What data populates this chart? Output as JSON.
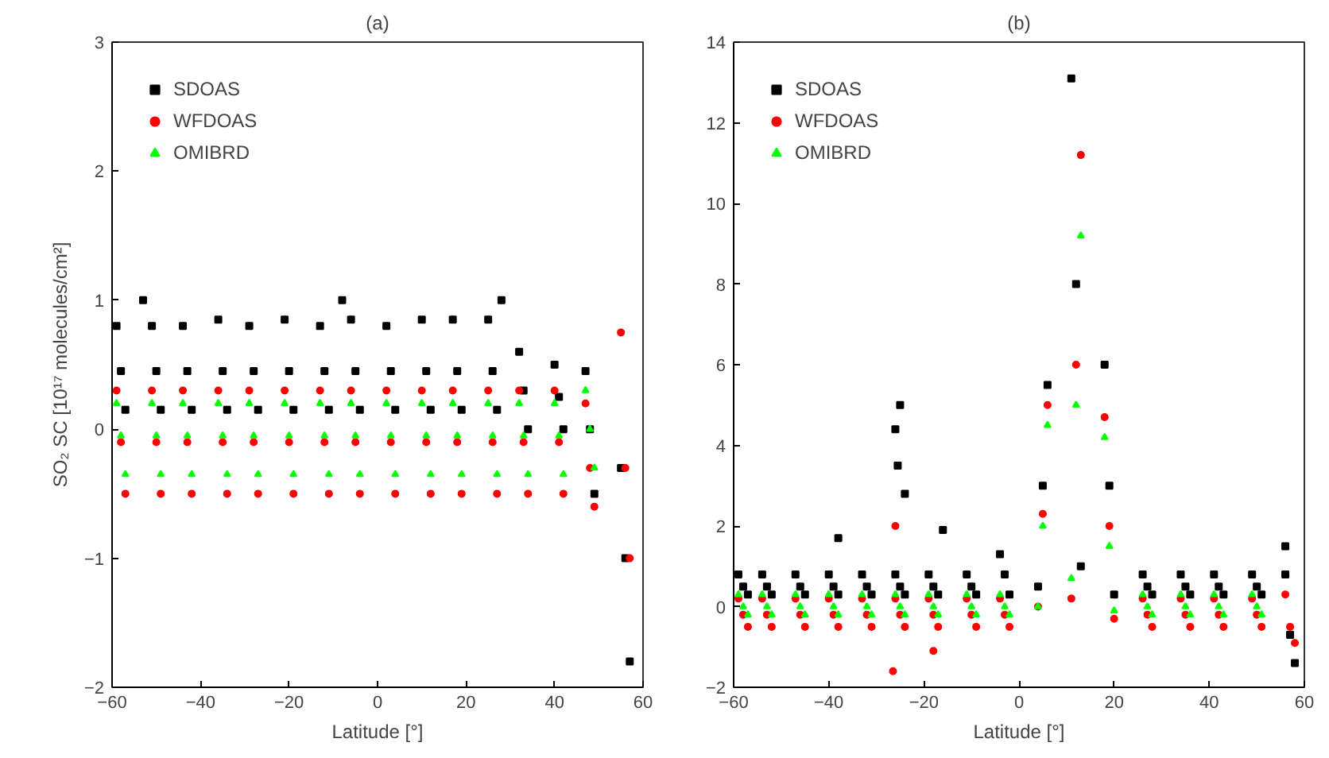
{
  "chart_data": [
    {
      "type": "scatter",
      "title": "(a)",
      "xlabel": "Latitude [°]",
      "ylabel": "SO₂ SC [10¹⁷ molecules/cm²]",
      "xlim": [
        -60,
        60
      ],
      "ylim": [
        -2,
        3
      ],
      "xticks": [
        -60,
        -40,
        -20,
        0,
        20,
        40,
        60
      ],
      "yticks": [
        -2,
        -1,
        0,
        1,
        2,
        3
      ],
      "legend": "top left",
      "series": [
        {
          "name": "SDOAS",
          "color": "#000000",
          "marker": "square",
          "x": [
            -59,
            -58,
            -57,
            -51,
            -50,
            -49,
            -44,
            -43,
            -42,
            -36,
            -35,
            -34,
            -29,
            -28,
            -27,
            -21,
            -20,
            -19,
            -13,
            -12,
            -11,
            -6,
            -5,
            -4,
            2,
            3,
            4,
            10,
            11,
            12,
            17,
            18,
            19,
            25,
            26,
            27,
            32,
            33,
            34,
            40,
            41,
            42,
            47,
            48,
            49,
            55,
            56,
            57,
            -53,
            -8,
            28
          ],
          "values": [
            0.8,
            0.45,
            0.15,
            0.8,
            0.45,
            0.15,
            0.8,
            0.45,
            0.15,
            0.85,
            0.45,
            0.15,
            0.8,
            0.45,
            0.15,
            0.85,
            0.45,
            0.15,
            0.8,
            0.45,
            0.15,
            0.85,
            0.45,
            0.15,
            0.8,
            0.45,
            0.15,
            0.85,
            0.45,
            0.15,
            0.85,
            0.45,
            0.15,
            0.85,
            0.45,
            0.15,
            0.6,
            0.3,
            0,
            0.5,
            0.25,
            0,
            0.45,
            0,
            -0.5,
            -0.3,
            -1,
            -1.8,
            1,
            1,
            1
          ]
        },
        {
          "name": "WFDOAS",
          "color": "#ff0000",
          "marker": "circle",
          "x": [
            -59,
            -58,
            -57,
            -51,
            -50,
            -49,
            -44,
            -43,
            -42,
            -36,
            -35,
            -34,
            -29,
            -28,
            -27,
            -21,
            -20,
            -19,
            -13,
            -12,
            -11,
            -6,
            -5,
            -4,
            2,
            3,
            4,
            10,
            11,
            12,
            17,
            18,
            19,
            25,
            26,
            27,
            32,
            33,
            34,
            40,
            41,
            42,
            47,
            48,
            49,
            55,
            56,
            57
          ],
          "values": [
            0.3,
            -0.1,
            -0.5,
            0.3,
            -0.1,
            -0.5,
            0.3,
            -0.1,
            -0.5,
            0.3,
            -0.1,
            -0.5,
            0.3,
            -0.1,
            -0.5,
            0.3,
            -0.1,
            -0.5,
            0.3,
            -0.1,
            -0.5,
            0.3,
            -0.1,
            -0.5,
            0.3,
            -0.1,
            -0.5,
            0.3,
            -0.1,
            -0.5,
            0.3,
            -0.1,
            -0.5,
            0.3,
            -0.1,
            -0.5,
            0.3,
            -0.1,
            -0.5,
            0.3,
            -0.1,
            -0.5,
            0.2,
            -0.3,
            -0.6,
            0.75,
            -0.3,
            -1
          ]
        },
        {
          "name": "OMIBRD",
          "color": "#00ff00",
          "marker": "triangle",
          "x": [
            -59,
            -58,
            -57,
            -51,
            -50,
            -49,
            -44,
            -43,
            -42,
            -36,
            -35,
            -34,
            -29,
            -28,
            -27,
            -21,
            -20,
            -19,
            -13,
            -12,
            -11,
            -6,
            -5,
            -4,
            2,
            3,
            4,
            10,
            11,
            12,
            17,
            18,
            19,
            25,
            26,
            27,
            32,
            33,
            34,
            40,
            41,
            42,
            47,
            48,
            49
          ],
          "values": [
            0.2,
            -0.05,
            -0.35,
            0.2,
            -0.05,
            -0.35,
            0.2,
            -0.05,
            -0.35,
            0.2,
            -0.05,
            -0.35,
            0.2,
            -0.05,
            -0.35,
            0.2,
            -0.05,
            -0.35,
            0.2,
            -0.05,
            -0.35,
            0.2,
            -0.05,
            -0.35,
            0.2,
            -0.05,
            -0.35,
            0.2,
            -0.05,
            -0.35,
            0.2,
            -0.05,
            -0.35,
            0.2,
            -0.05,
            -0.35,
            0.2,
            -0.05,
            -0.35,
            0.2,
            -0.05,
            -0.35,
            0.3,
            0,
            -0.3
          ]
        }
      ]
    },
    {
      "type": "scatter",
      "title": "(b)",
      "xlabel": "Latitude [°]",
      "xlim": [
        -60,
        60
      ],
      "ylim": [
        -2,
        14
      ],
      "xticks": [
        -60,
        -40,
        -20,
        0,
        20,
        40,
        60
      ],
      "yticks": [
        -2,
        0,
        2,
        4,
        6,
        8,
        10,
        12,
        14
      ],
      "legend": "top left",
      "series": [
        {
          "name": "SDOAS",
          "color": "#000000",
          "marker": "square",
          "x": [
            -59,
            -58,
            -57,
            -54,
            -53,
            -52,
            -47,
            -46,
            -45,
            -40,
            -39,
            -38,
            -33,
            -32,
            -31,
            -26,
            -25,
            -24,
            -19,
            -18,
            -17,
            -11,
            -10,
            -9,
            -4,
            -3,
            -2,
            4,
            5,
            6,
            11,
            12,
            13,
            18,
            19,
            20,
            26,
            27,
            28,
            34,
            35,
            36,
            41,
            42,
            43,
            49,
            50,
            51,
            56,
            57,
            58,
            -25,
            -26,
            -25.5,
            -24,
            -38,
            -16,
            56
          ],
          "values": [
            0.8,
            0.5,
            0.3,
            0.8,
            0.5,
            0.3,
            0.8,
            0.5,
            0.3,
            0.8,
            0.5,
            0.3,
            0.8,
            0.5,
            0.3,
            0.8,
            0.5,
            0.3,
            0.8,
            0.5,
            0.3,
            0.8,
            0.5,
            0.3,
            1.3,
            0.8,
            0.3,
            0.5,
            3,
            5.5,
            13.1,
            8,
            1,
            6,
            3,
            0.3,
            0.8,
            0.5,
            0.3,
            0.8,
            0.5,
            0.3,
            0.8,
            0.5,
            0.3,
            0.8,
            0.5,
            0.3,
            0.8,
            -0.7,
            -1.4,
            5,
            4.4,
            3.5,
            2.8,
            1.7,
            1.9,
            1.5
          ]
        },
        {
          "name": "WFDOAS",
          "color": "#ff0000",
          "marker": "circle",
          "x": [
            -59,
            -58,
            -57,
            -54,
            -53,
            -52,
            -47,
            -46,
            -45,
            -40,
            -39,
            -38,
            -33,
            -32,
            -31,
            -26,
            -25,
            -24,
            -19,
            -18,
            -17,
            -11,
            -10,
            -9,
            -4,
            -3,
            -2,
            4,
            5,
            6,
            11,
            12,
            13,
            18,
            19,
            20,
            26,
            27,
            28,
            34,
            35,
            36,
            41,
            42,
            43,
            49,
            50,
            51,
            56,
            57,
            58,
            -26,
            -26.5,
            -18
          ],
          "values": [
            0.2,
            -0.2,
            -0.5,
            0.2,
            -0.2,
            -0.5,
            0.2,
            -0.2,
            -0.5,
            0.2,
            -0.2,
            -0.5,
            0.2,
            -0.2,
            -0.5,
            0.2,
            -0.2,
            -0.5,
            0.2,
            -0.2,
            -0.5,
            0.2,
            -0.2,
            -0.5,
            0.2,
            -0.2,
            -0.5,
            0,
            2.3,
            5,
            0.2,
            6,
            11.2,
            4.7,
            2,
            -0.3,
            0.2,
            -0.2,
            -0.5,
            0.2,
            -0.2,
            -0.5,
            0.2,
            -0.2,
            -0.5,
            0.2,
            -0.2,
            -0.5,
            0.3,
            -0.5,
            -0.9,
            2,
            -1.6,
            -1.1
          ]
        },
        {
          "name": "OMIBRD",
          "color": "#00ff00",
          "marker": "triangle",
          "x": [
            -59,
            -58,
            -57,
            -54,
            -53,
            -52,
            -47,
            -46,
            -45,
            -40,
            -39,
            -38,
            -33,
            -32,
            -31,
            -26,
            -25,
            -24,
            -19,
            -18,
            -17,
            -11,
            -10,
            -9,
            -4,
            -3,
            -2,
            4,
            5,
            6,
            11,
            12,
            13,
            18,
            19,
            20,
            26,
            27,
            28,
            34,
            35,
            36,
            41,
            42,
            43,
            49,
            50,
            51
          ],
          "values": [
            0.3,
            0,
            -0.2,
            0.3,
            0,
            -0.2,
            0.3,
            0,
            -0.2,
            0.3,
            0,
            -0.2,
            0.3,
            0,
            -0.2,
            0.3,
            0,
            -0.2,
            0.3,
            0,
            -0.2,
            0.3,
            0,
            -0.2,
            0.3,
            0,
            -0.2,
            0,
            2,
            4.5,
            0.7,
            5,
            9.2,
            4.2,
            1.5,
            -0.1,
            0.3,
            0,
            -0.2,
            0.3,
            0,
            -0.2,
            0.3,
            0,
            -0.2,
            0.3,
            0,
            -0.2
          ]
        }
      ]
    }
  ]
}
